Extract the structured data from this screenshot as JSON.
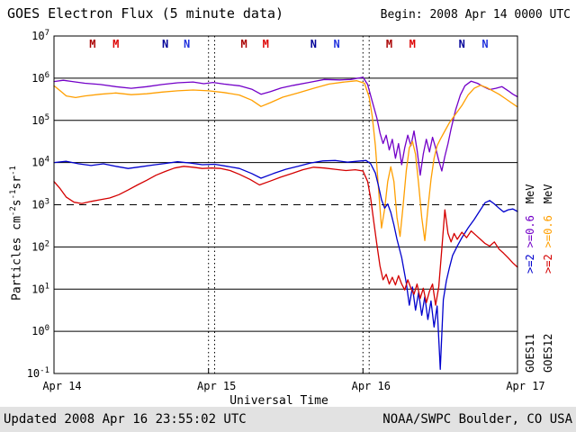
{
  "header": {
    "title": "GOES Electron Flux (5 minute data)",
    "begin": "Begin: 2008 Apr 14 0000 UTC"
  },
  "footer": {
    "updated": "Updated 2008 Apr 16 23:55:02 UTC",
    "source": "NOAA/SWPC Boulder, CO USA"
  },
  "axes": {
    "xlabel": "Universal Time",
    "ylabel": {
      "p1": "Particles cm",
      "s1": "-2",
      "p2": "s",
      "s2": "-1",
      "p3": "sr",
      "s3": "-1"
    }
  },
  "right_labels": {
    "col1": {
      "ge2": ">=2",
      "ge06": ">=0.6",
      "mev": "MeV",
      "sat": "GOES11",
      "ge2_color": "#0000cd",
      "ge06_color": "#7300c8"
    },
    "col2": {
      "ge2": ">=2",
      "ge06": ">=0.6",
      "mev": "MeV",
      "sat": "GOES12",
      "ge2_color": "#d40000",
      "ge06_color": "#ff9f00"
    }
  },
  "chart_data": {
    "type": "line",
    "title": "GOES Electron Flux (5 minute data)",
    "xlabel": "Universal Time",
    "ylabel": "Particles cm^-2 s^-1 sr^-1",
    "y_scale": "log10",
    "xlim_days": [
      0,
      3
    ],
    "ylim_log": [
      -1,
      7
    ],
    "x_ticks": [
      {
        "label": "Apr 14",
        "day": 0
      },
      {
        "label": "Apr 15",
        "day": 1
      },
      {
        "label": "Apr 16",
        "day": 2
      },
      {
        "label": "Apr 17",
        "day": 3
      }
    ],
    "y_tick_exps": [
      7,
      6,
      5,
      4,
      3,
      2,
      1,
      0,
      -1
    ],
    "gridline_exps": [
      0,
      1,
      2,
      4,
      5,
      6
    ],
    "threshold_exp": 3,
    "vline_days": [
      1,
      1.04,
      2,
      2.04
    ],
    "markers": [
      {
        "label": "M",
        "day": 0.25,
        "color": "#aa0000"
      },
      {
        "label": "M",
        "day": 0.4,
        "color": "#dd0000"
      },
      {
        "label": "N",
        "day": 0.72,
        "color": "#000099"
      },
      {
        "label": "N",
        "day": 0.86,
        "color": "#2233dd"
      },
      {
        "label": "M",
        "day": 1.23,
        "color": "#aa0000"
      },
      {
        "label": "M",
        "day": 1.37,
        "color": "#dd0000"
      },
      {
        "label": "N",
        "day": 1.68,
        "color": "#000099"
      },
      {
        "label": "N",
        "day": 1.83,
        "color": "#2233dd"
      },
      {
        "label": "M",
        "day": 2.17,
        "color": "#aa0000"
      },
      {
        "label": "M",
        "day": 2.32,
        "color": "#dd0000"
      },
      {
        "label": "N",
        "day": 2.64,
        "color": "#000099"
      },
      {
        "label": "N",
        "day": 2.79,
        "color": "#2233dd"
      }
    ],
    "series": [
      {
        "id": "goes11-ge06mev",
        "name": "GOES11 >=0.6 MeV",
        "color": "#7300c8",
        "points": [
          [
            0,
            5.92
          ],
          [
            0.06,
            5.95
          ],
          [
            0.12,
            5.92
          ],
          [
            0.2,
            5.88
          ],
          [
            0.3,
            5.85
          ],
          [
            0.4,
            5.8
          ],
          [
            0.5,
            5.76
          ],
          [
            0.6,
            5.8
          ],
          [
            0.7,
            5.85
          ],
          [
            0.8,
            5.89
          ],
          [
            0.9,
            5.91
          ],
          [
            0.97,
            5.87
          ],
          [
            1.03,
            5.9
          ],
          [
            1.1,
            5.86
          ],
          [
            1.2,
            5.82
          ],
          [
            1.28,
            5.74
          ],
          [
            1.34,
            5.62
          ],
          [
            1.4,
            5.68
          ],
          [
            1.47,
            5.77
          ],
          [
            1.55,
            5.83
          ],
          [
            1.65,
            5.9
          ],
          [
            1.75,
            5.97
          ],
          [
            1.85,
            5.96
          ],
          [
            1.92,
            5.97
          ],
          [
            2,
            6.02
          ],
          [
            2.03,
            5.85
          ],
          [
            2.06,
            5.45
          ],
          [
            2.09,
            5.05
          ],
          [
            2.11,
            4.7
          ],
          [
            2.13,
            4.45
          ],
          [
            2.15,
            4.65
          ],
          [
            2.17,
            4.3
          ],
          [
            2.19,
            4.55
          ],
          [
            2.21,
            4.1
          ],
          [
            2.23,
            4.45
          ],
          [
            2.25,
            3.95
          ],
          [
            2.27,
            4.35
          ],
          [
            2.29,
            4.65
          ],
          [
            2.31,
            4.4
          ],
          [
            2.33,
            4.75
          ],
          [
            2.35,
            4.3
          ],
          [
            2.37,
            3.7
          ],
          [
            2.39,
            4.2
          ],
          [
            2.41,
            4.55
          ],
          [
            2.43,
            4.25
          ],
          [
            2.45,
            4.6
          ],
          [
            2.47,
            4.35
          ],
          [
            2.49,
            4.05
          ],
          [
            2.51,
            3.8
          ],
          [
            2.53,
            4.15
          ],
          [
            2.55,
            4.45
          ],
          [
            2.57,
            4.8
          ],
          [
            2.6,
            5.25
          ],
          [
            2.63,
            5.6
          ],
          [
            2.66,
            5.82
          ],
          [
            2.7,
            5.93
          ],
          [
            2.74,
            5.88
          ],
          [
            2.78,
            5.8
          ],
          [
            2.82,
            5.73
          ],
          [
            2.86,
            5.76
          ],
          [
            2.9,
            5.8
          ],
          [
            2.94,
            5.7
          ],
          [
            2.97,
            5.62
          ],
          [
            3,
            5.56
          ]
        ]
      },
      {
        "id": "goes12-ge06mev",
        "name": "GOES12 >=0.6 MeV",
        "color": "#ff9f00",
        "points": [
          [
            0,
            5.82
          ],
          [
            0.04,
            5.7
          ],
          [
            0.08,
            5.58
          ],
          [
            0.14,
            5.54
          ],
          [
            0.2,
            5.58
          ],
          [
            0.3,
            5.62
          ],
          [
            0.4,
            5.65
          ],
          [
            0.5,
            5.61
          ],
          [
            0.6,
            5.63
          ],
          [
            0.7,
            5.67
          ],
          [
            0.8,
            5.7
          ],
          [
            0.9,
            5.72
          ],
          [
            1,
            5.7
          ],
          [
            1.1,
            5.66
          ],
          [
            1.2,
            5.6
          ],
          [
            1.28,
            5.48
          ],
          [
            1.34,
            5.33
          ],
          [
            1.4,
            5.42
          ],
          [
            1.48,
            5.55
          ],
          [
            1.58,
            5.65
          ],
          [
            1.68,
            5.76
          ],
          [
            1.78,
            5.86
          ],
          [
            1.88,
            5.91
          ],
          [
            1.96,
            5.94
          ],
          [
            2.01,
            5.88
          ],
          [
            2.04,
            5.55
          ],
          [
            2.06,
            5.1
          ],
          [
            2.08,
            4.4
          ],
          [
            2.1,
            3.4
          ],
          [
            2.12,
            2.45
          ],
          [
            2.14,
            2.9
          ],
          [
            2.16,
            3.55
          ],
          [
            2.18,
            3.9
          ],
          [
            2.2,
            3.55
          ],
          [
            2.22,
            2.7
          ],
          [
            2.24,
            2.25
          ],
          [
            2.26,
            3
          ],
          [
            2.28,
            3.8
          ],
          [
            2.3,
            4.35
          ],
          [
            2.32,
            4.5
          ],
          [
            2.34,
            4.2
          ],
          [
            2.36,
            3.5
          ],
          [
            2.38,
            2.7
          ],
          [
            2.4,
            2.15
          ],
          [
            2.42,
            2.9
          ],
          [
            2.44,
            3.6
          ],
          [
            2.46,
            4.1
          ],
          [
            2.48,
            4.4
          ],
          [
            2.5,
            4.55
          ],
          [
            2.53,
            4.75
          ],
          [
            2.56,
            4.95
          ],
          [
            2.6,
            5.15
          ],
          [
            2.64,
            5.35
          ],
          [
            2.68,
            5.6
          ],
          [
            2.72,
            5.76
          ],
          [
            2.76,
            5.83
          ],
          [
            2.8,
            5.78
          ],
          [
            2.84,
            5.7
          ],
          [
            2.88,
            5.62
          ],
          [
            2.92,
            5.52
          ],
          [
            2.96,
            5.42
          ],
          [
            3,
            5.32
          ]
        ]
      },
      {
        "id": "goes11-ge2mev",
        "name": "GOES11 >=2 MeV",
        "color": "#0000cd",
        "points": [
          [
            0,
            4
          ],
          [
            0.08,
            4.03
          ],
          [
            0.16,
            3.97
          ],
          [
            0.24,
            3.93
          ],
          [
            0.32,
            3.97
          ],
          [
            0.4,
            3.91
          ],
          [
            0.48,
            3.86
          ],
          [
            0.56,
            3.9
          ],
          [
            0.64,
            3.94
          ],
          [
            0.72,
            3.98
          ],
          [
            0.8,
            4.02
          ],
          [
            0.88,
            3.99
          ],
          [
            0.96,
            3.95
          ],
          [
            1.04,
            3.96
          ],
          [
            1.12,
            3.91
          ],
          [
            1.2,
            3.86
          ],
          [
            1.28,
            3.74
          ],
          [
            1.34,
            3.63
          ],
          [
            1.42,
            3.74
          ],
          [
            1.5,
            3.84
          ],
          [
            1.58,
            3.91
          ],
          [
            1.66,
            3.99
          ],
          [
            1.74,
            4.04
          ],
          [
            1.82,
            4.05
          ],
          [
            1.9,
            4.01
          ],
          [
            1.96,
            4.03
          ],
          [
            2.02,
            4.05
          ],
          [
            2.05,
            3.97
          ],
          [
            2.08,
            3.75
          ],
          [
            2.1,
            3.45
          ],
          [
            2.12,
            3.12
          ],
          [
            2.14,
            2.92
          ],
          [
            2.16,
            3.02
          ],
          [
            2.18,
            2.82
          ],
          [
            2.2,
            2.52
          ],
          [
            2.22,
            2.18
          ],
          [
            2.25,
            1.75
          ],
          [
            2.28,
            1.15
          ],
          [
            2.3,
            0.62
          ],
          [
            2.32,
            1.05
          ],
          [
            2.34,
            0.5
          ],
          [
            2.36,
            0.92
          ],
          [
            2.38,
            0.38
          ],
          [
            2.4,
            0.82
          ],
          [
            2.42,
            0.28
          ],
          [
            2.44,
            0.72
          ],
          [
            2.46,
            0.1
          ],
          [
            2.48,
            0.6
          ],
          [
            2.5,
            -0.9
          ],
          [
            2.52,
            0.75
          ],
          [
            2.54,
            1.2
          ],
          [
            2.56,
            1.52
          ],
          [
            2.58,
            1.8
          ],
          [
            2.61,
            2.02
          ],
          [
            2.64,
            2.22
          ],
          [
            2.68,
            2.45
          ],
          [
            2.72,
            2.65
          ],
          [
            2.76,
            2.88
          ],
          [
            2.79,
            3.05
          ],
          [
            2.82,
            3.1
          ],
          [
            2.85,
            3.02
          ],
          [
            2.88,
            2.92
          ],
          [
            2.91,
            2.83
          ],
          [
            2.94,
            2.88
          ],
          [
            2.97,
            2.9
          ],
          [
            3,
            2.84
          ]
        ]
      },
      {
        "id": "goes12-ge2mev",
        "name": "GOES12 >=2 MeV",
        "color": "#d40000",
        "points": [
          [
            0,
            3.55
          ],
          [
            0.04,
            3.38
          ],
          [
            0.08,
            3.18
          ],
          [
            0.13,
            3.06
          ],
          [
            0.18,
            3.03
          ],
          [
            0.24,
            3.08
          ],
          [
            0.3,
            3.12
          ],
          [
            0.36,
            3.16
          ],
          [
            0.42,
            3.24
          ],
          [
            0.48,
            3.35
          ],
          [
            0.54,
            3.47
          ],
          [
            0.6,
            3.58
          ],
          [
            0.66,
            3.7
          ],
          [
            0.72,
            3.79
          ],
          [
            0.78,
            3.87
          ],
          [
            0.84,
            3.91
          ],
          [
            0.9,
            3.89
          ],
          [
            0.96,
            3.86
          ],
          [
            1.02,
            3.87
          ],
          [
            1.08,
            3.86
          ],
          [
            1.14,
            3.81
          ],
          [
            1.2,
            3.72
          ],
          [
            1.27,
            3.6
          ],
          [
            1.33,
            3.47
          ],
          [
            1.4,
            3.56
          ],
          [
            1.47,
            3.66
          ],
          [
            1.54,
            3.74
          ],
          [
            1.61,
            3.83
          ],
          [
            1.68,
            3.89
          ],
          [
            1.75,
            3.87
          ],
          [
            1.82,
            3.84
          ],
          [
            1.89,
            3.81
          ],
          [
            1.95,
            3.83
          ],
          [
            2,
            3.8
          ],
          [
            2.03,
            3.55
          ],
          [
            2.05,
            3.15
          ],
          [
            2.07,
            2.6
          ],
          [
            2.09,
            2.05
          ],
          [
            2.11,
            1.55
          ],
          [
            2.13,
            1.22
          ],
          [
            2.15,
            1.35
          ],
          [
            2.17,
            1.12
          ],
          [
            2.19,
            1.28
          ],
          [
            2.21,
            1.1
          ],
          [
            2.23,
            1.32
          ],
          [
            2.25,
            1.12
          ],
          [
            2.27,
            0.98
          ],
          [
            2.29,
            1.22
          ],
          [
            2.31,
            1.02
          ],
          [
            2.33,
            0.88
          ],
          [
            2.35,
            1.12
          ],
          [
            2.37,
            0.78
          ],
          [
            2.39,
            1.02
          ],
          [
            2.41,
            0.68
          ],
          [
            2.43,
            0.95
          ],
          [
            2.45,
            1.12
          ],
          [
            2.47,
            0.62
          ],
          [
            2.49,
            1.05
          ],
          [
            2.51,
            1.95
          ],
          [
            2.53,
            2.88
          ],
          [
            2.55,
            2.32
          ],
          [
            2.57,
            2.12
          ],
          [
            2.59,
            2.32
          ],
          [
            2.61,
            2.18
          ],
          [
            2.64,
            2.35
          ],
          [
            2.67,
            2.22
          ],
          [
            2.7,
            2.38
          ],
          [
            2.73,
            2.28
          ],
          [
            2.76,
            2.18
          ],
          [
            2.79,
            2.08
          ],
          [
            2.82,
            2.02
          ],
          [
            2.85,
            2.12
          ],
          [
            2.88,
            1.95
          ],
          [
            2.91,
            1.85
          ],
          [
            2.94,
            1.74
          ],
          [
            2.97,
            1.62
          ],
          [
            3,
            1.52
          ]
        ]
      }
    ]
  }
}
